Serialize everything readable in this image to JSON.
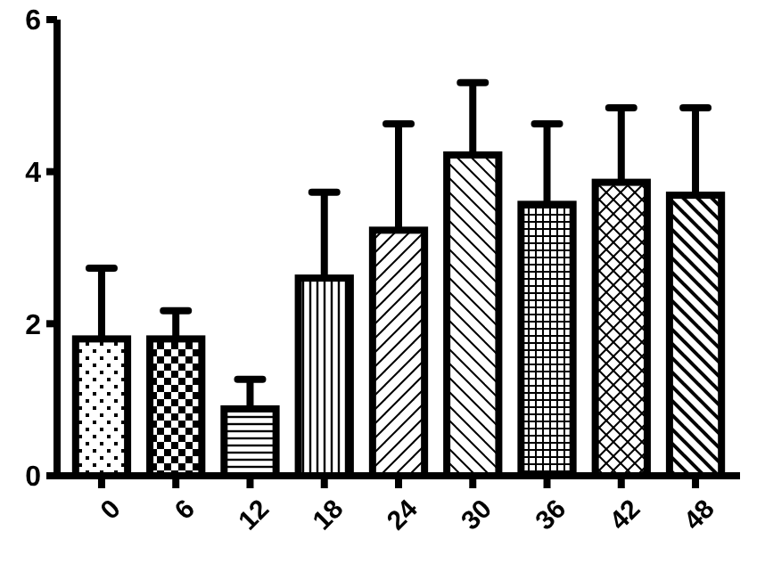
{
  "chart_data": {
    "type": "bar",
    "categories": [
      "0",
      "6",
      "12",
      "18",
      "24",
      "30",
      "36",
      "42",
      "48"
    ],
    "values": [
      1.8,
      1.8,
      0.88,
      2.6,
      3.23,
      4.22,
      3.57,
      3.86,
      3.69
    ],
    "errors": [
      [
        1.8,
        2.73
      ],
      [
        1.8,
        2.17
      ],
      [
        0.88,
        1.27
      ],
      [
        2.6,
        3.73
      ],
      [
        3.23,
        4.63
      ],
      [
        4.22,
        5.17
      ],
      [
        3.57,
        4.63
      ],
      [
        3.86,
        4.84
      ],
      [
        3.69,
        4.84
      ]
    ],
    "color": "#000000",
    "ylim": [
      0,
      6
    ],
    "yticks": [
      0,
      2,
      4,
      6
    ],
    "grid": false
  }
}
